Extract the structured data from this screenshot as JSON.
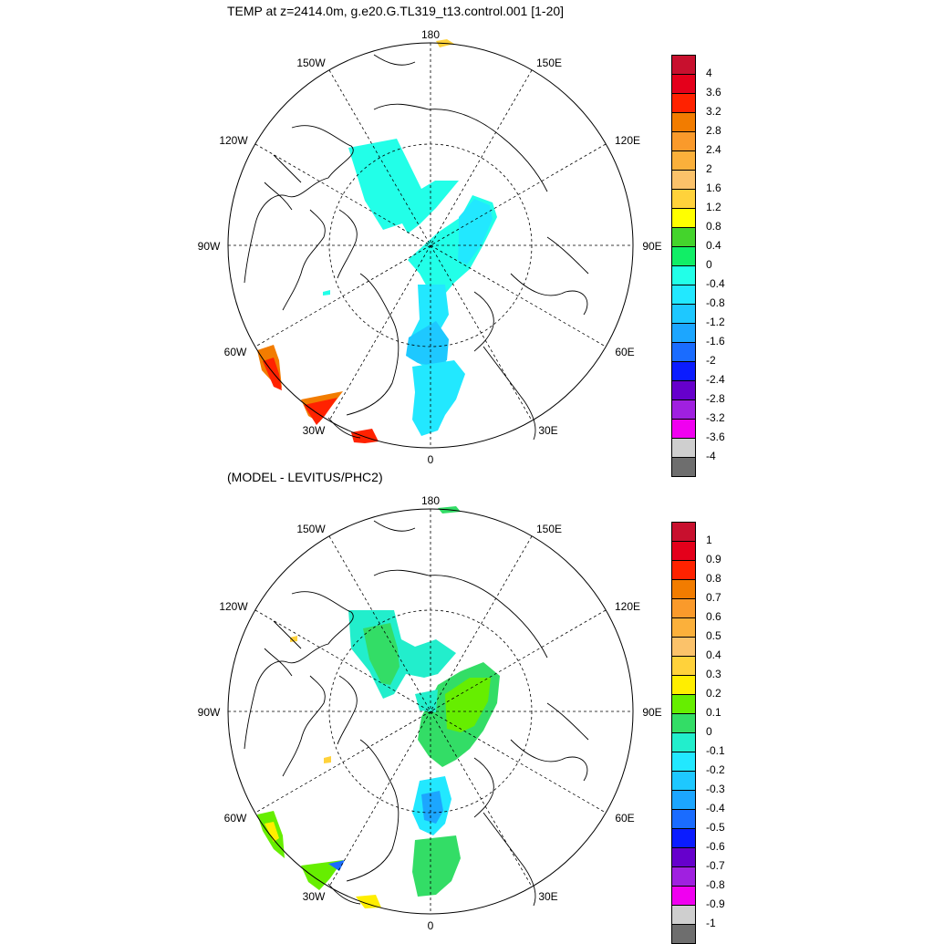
{
  "chart_data": [
    {
      "type": "heatmap",
      "projection": "polar-stereographic-north",
      "title": "TEMP at z=2414.0m, g.e20.G.TL319_t13.control.001 [1-20]",
      "longitude_labels": [
        "180",
        "150E",
        "120E",
        "90E",
        "60E",
        "30E",
        "0",
        "30W",
        "60W",
        "90W",
        "120W",
        "150W"
      ],
      "colorbar": {
        "labels": [
          "4",
          "3.6",
          "3.2",
          "2.8",
          "2.4",
          "2",
          "1.6",
          "1.2",
          "0.8",
          "0.4",
          "0",
          "-0.4",
          "-0.8",
          "-1.2",
          "-1.6",
          "-2",
          "-2.4",
          "-2.8",
          "-3.2",
          "-3.6",
          "-4"
        ],
        "colors": [
          "#c8102e",
          "#e4001b",
          "#ff2200",
          "#f27c00",
          "#fa9a2b",
          "#fbb03b",
          "#fbc26a",
          "#ffd23b",
          "#ffff00",
          "#44d42c",
          "#11ee66",
          "#22ffe8",
          "#22e8ff",
          "#1ec8ff",
          "#1ca6ff",
          "#1a6cff",
          "#0b1cff",
          "#6600cc",
          "#a020e0",
          "#f000f0",
          "#cfcfcf",
          "#6e6e6e"
        ]
      }
    },
    {
      "type": "heatmap",
      "projection": "polar-stereographic-north",
      "title": "(MODEL - LEVITUS/PHC2)",
      "longitude_labels": [
        "180",
        "150E",
        "120E",
        "90E",
        "60E",
        "30E",
        "0",
        "30W",
        "60W",
        "90W",
        "120W",
        "150W"
      ],
      "colorbar": {
        "labels": [
          "1",
          "0.9",
          "0.8",
          "0.7",
          "0.6",
          "0.5",
          "0.4",
          "0.3",
          "0.2",
          "0.1",
          "0",
          "-0.1",
          "-0.2",
          "-0.3",
          "-0.4",
          "-0.5",
          "-0.6",
          "-0.7",
          "-0.8",
          "-0.9",
          "-1"
        ],
        "colors": [
          "#c8102e",
          "#e4001b",
          "#ff2200",
          "#f27c00",
          "#fa9a2b",
          "#fbb03b",
          "#fbc26a",
          "#ffd23b",
          "#ffee00",
          "#66ee00",
          "#33dd66",
          "#22eecc",
          "#22e8ff",
          "#1ec8ff",
          "#1ca6ff",
          "#1a6cff",
          "#0b1cff",
          "#6600cc",
          "#a020e0",
          "#f000f0",
          "#cfcfcf",
          "#6e6e6e"
        ]
      }
    }
  ]
}
